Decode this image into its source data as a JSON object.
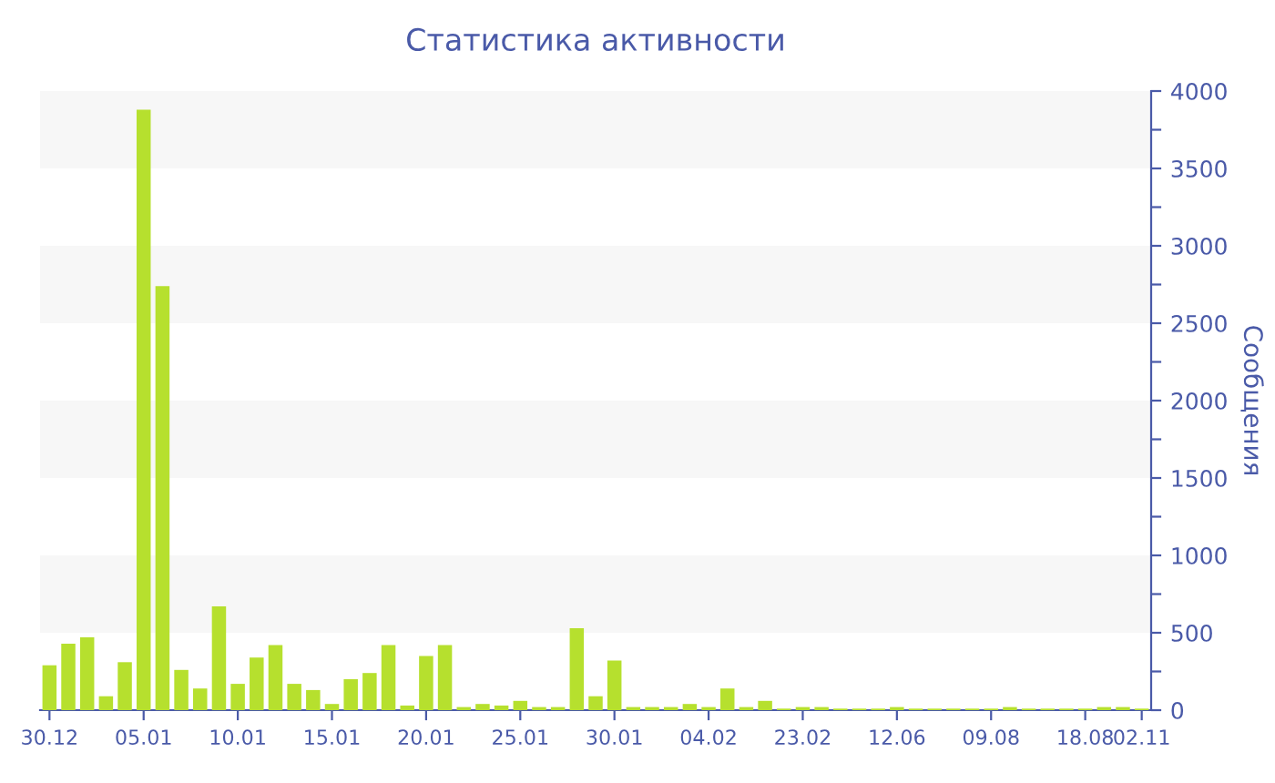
{
  "chart_data": {
    "type": "bar",
    "title": "Статистика активности",
    "ylabel": "Сообщения",
    "categories": [
      "30.12",
      null,
      null,
      null,
      null,
      "05.01",
      null,
      null,
      null,
      null,
      "10.01",
      null,
      null,
      null,
      null,
      "15.01",
      null,
      null,
      null,
      null,
      "20.01",
      null,
      null,
      null,
      null,
      "25.01",
      null,
      null,
      null,
      null,
      "30.01",
      null,
      null,
      null,
      null,
      "04.02",
      null,
      null,
      null,
      null,
      "23.02",
      null,
      null,
      null,
      null,
      "12.06",
      null,
      null,
      null,
      null,
      "09.08",
      null,
      null,
      null,
      null,
      "18.08",
      null,
      null,
      "02.11"
    ],
    "values": [
      290,
      430,
      470,
      90,
      310,
      3880,
      2740,
      260,
      140,
      670,
      170,
      340,
      420,
      170,
      130,
      40,
      200,
      240,
      420,
      30,
      350,
      420,
      20,
      40,
      30,
      60,
      20,
      20,
      530,
      90,
      320,
      20,
      20,
      20,
      40,
      20,
      140,
      20,
      60,
      10,
      20,
      20,
      10,
      10,
      10,
      20,
      10,
      10,
      10,
      10,
      10,
      20,
      10,
      10,
      10,
      10,
      20,
      20,
      10
    ],
    "color": "#b6e02e",
    "ylim": [
      0,
      4000
    ],
    "yticks": [
      0,
      {
        "value": 250,
        "label": null
      },
      500,
      {
        "value": 750,
        "label": null
      },
      1000,
      {
        "value": 1250,
        "label": null
      },
      1500,
      {
        "value": 1750,
        "label": null
      },
      2000,
      {
        "value": 2250,
        "label": null
      },
      2500,
      {
        "value": 2750,
        "label": null
      },
      3000,
      {
        "value": 3250,
        "label": null
      },
      3500,
      {
        "value": 3750,
        "label": null
      },
      4000
    ],
    "bands": [
      {
        "axis": "y",
        "from": 500,
        "to": 1000,
        "color": "#f7f7f7"
      },
      {
        "axis": "y",
        "from": 1500,
        "to": 2000,
        "color": "#f7f7f7"
      },
      {
        "axis": "y",
        "from": 2500,
        "to": 3000,
        "color": "#f7f7f7"
      },
      {
        "axis": "y",
        "from": 3500,
        "to": 4000,
        "color": "#f7f7f7"
      }
    ],
    "grid": false,
    "legend": false
  }
}
